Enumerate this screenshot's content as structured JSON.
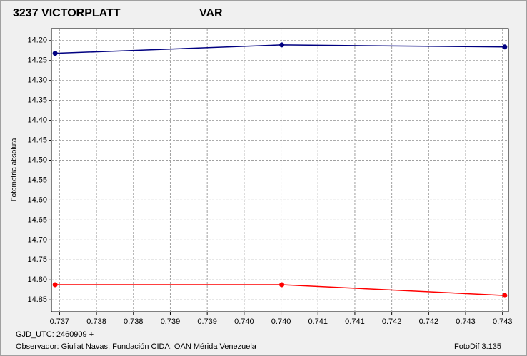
{
  "chart_data": {
    "type": "line",
    "y_axis_label": "Fotometría absoluta",
    "x": [
      0.73694,
      0.74001,
      0.74303
    ],
    "series": [
      {
        "name": "3237 VICTORPLATT",
        "color": "#ff0000",
        "values": [
          14.812,
          14.812,
          14.839
        ]
      },
      {
        "name": "VAR",
        "color": "#000080",
        "values": [
          14.232,
          14.211,
          14.216
        ]
      }
    ],
    "xlim": [
      0.73689,
      0.74308
    ],
    "ylim": [
      14.17,
      14.88
    ],
    "y_inverted": true,
    "grid": true,
    "xticks": [
      0.737,
      {
        "value": 0.7375,
        "label": "0.738"
      },
      0.738,
      {
        "value": 0.7385,
        "label": "0.739"
      },
      0.739,
      {
        "value": 0.7395,
        "label": "0.740"
      },
      {
        "value": 0.74,
        "label": "0.740"
      },
      {
        "value": 0.7405,
        "label": "0.741"
      },
      0.741,
      {
        "value": 0.7415,
        "label": "0.742"
      },
      0.742,
      {
        "value": 0.7425,
        "label": "0.743"
      },
      0.743
    ],
    "yticks": [
      {
        "value": 14.2,
        "label": "14.20"
      },
      14.25,
      {
        "value": 14.3,
        "label": "14.30"
      },
      14.35,
      {
        "value": 14.4,
        "label": "14.40"
      },
      14.45,
      {
        "value": 14.5,
        "label": "14.50"
      },
      14.55,
      {
        "value": 14.6,
        "label": "14.60"
      },
      14.65,
      {
        "value": 14.7,
        "label": "14.70"
      },
      14.75,
      {
        "value": 14.8,
        "label": "14.80"
      },
      14.85
    ],
    "footer": {
      "gjd": "GJD_UTC: 2460909 +",
      "observer": "Observador: Giuliat Navas, Fundación CIDA, OAN Mérida Venezuela",
      "software": "FotoDif 3.135"
    }
  }
}
